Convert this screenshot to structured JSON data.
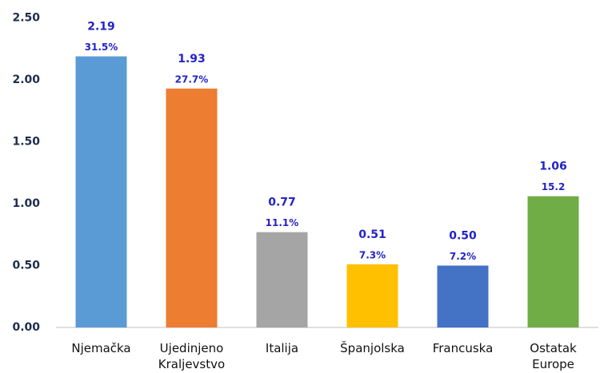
{
  "chart_data": {
    "type": "bar",
    "categories": [
      "Njemačka",
      "Ujedinjeno Kraljevstvo",
      "Italija",
      "Španjolska",
      "Francuska",
      "Ostatak Europe"
    ],
    "values": [
      2.19,
      1.93,
      0.77,
      0.51,
      0.5,
      1.06
    ],
    "value_labels": [
      "2.19",
      "1.93",
      "0.77",
      "0.51",
      "0.50",
      "1.06"
    ],
    "shares": [
      31.5,
      27.7,
      11.1,
      7.3,
      7.2,
      15.2
    ],
    "share_labels": [
      "31.5%",
      "27.7%",
      "11.1%",
      "7.3%",
      "7.2%",
      "15.2"
    ],
    "colors": [
      "#5b9bd5",
      "#ed7d31",
      "#a5a5a5",
      "#ffc000",
      "#4472c4",
      "#70ad47"
    ],
    "ylim": [
      0,
      2.5
    ],
    "yticks": [
      {
        "value": 0,
        "label": "0.00"
      },
      {
        "value": 0.5,
        "label": "0.50"
      },
      {
        "value": 1,
        "label": "1.00"
      },
      {
        "value": 1.5,
        "label": "1.50"
      },
      {
        "value": 2,
        "label": "2.00"
      },
      {
        "value": 2.5,
        "label": "2.50"
      }
    ],
    "grid": false
  }
}
